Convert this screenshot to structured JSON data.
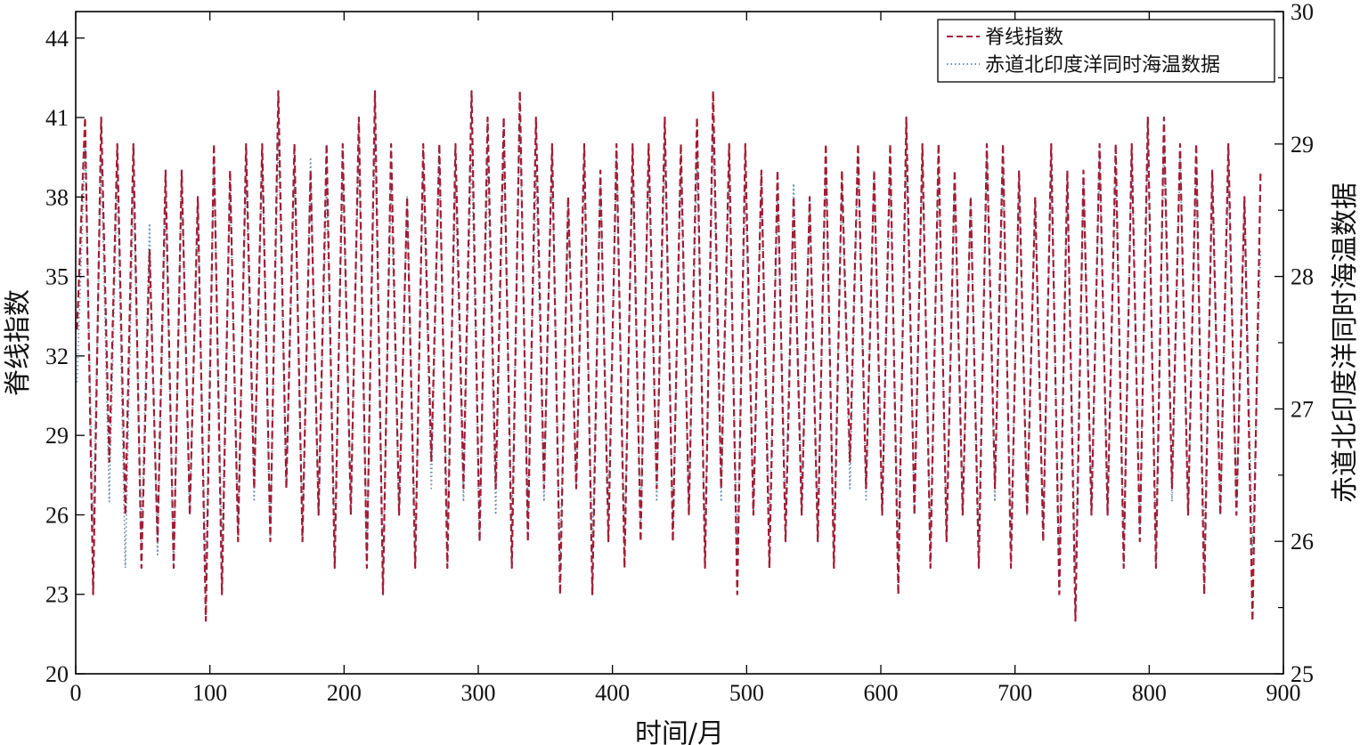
{
  "chart_data": {
    "type": "line",
    "title": "",
    "xlabel": "时间/月",
    "ylabel_left": "脊线指数",
    "ylabel_right": "赤道北印度洋同时海温数据",
    "xlim": [
      0,
      900
    ],
    "ylim_left": [
      20,
      45
    ],
    "ylim_right": [
      25,
      30
    ],
    "x_ticks": [
      "0",
      "100",
      "200",
      "300",
      "400",
      "500",
      "600",
      "700",
      "800",
      "900"
    ],
    "y_ticks_left": [
      "20",
      "23",
      "26",
      "29",
      "32",
      "35",
      "38",
      "41",
      "44"
    ],
    "y_ticks_right": [
      "25",
      "26",
      "27",
      "28",
      "29",
      "30"
    ],
    "grid": false,
    "legend_position": "top-right",
    "series": [
      {
        "name": "脊线指数",
        "axis": "left",
        "style": "dashed",
        "color": "#a01d35",
        "x_start": 1,
        "x_step": 6,
        "values": [
          33,
          41,
          23,
          41,
          28,
          40,
          26,
          40,
          24,
          36,
          25,
          39,
          24,
          39,
          26,
          38,
          22,
          40,
          23,
          39,
          25,
          40,
          27,
          40,
          25,
          42,
          27,
          40,
          25,
          39,
          26,
          40,
          24,
          40,
          26,
          41,
          24,
          42,
          23,
          40,
          26,
          38,
          24,
          40,
          28,
          40,
          24,
          40,
          27,
          42,
          25,
          41,
          27,
          41,
          24,
          42,
          25,
          41,
          27,
          40,
          23,
          38,
          27,
          40,
          23,
          39,
          25,
          40,
          24,
          40,
          25,
          40,
          27,
          41,
          25,
          40,
          26,
          41,
          24,
          42,
          27,
          40,
          23,
          40,
          26,
          39,
          24,
          39,
          25,
          38,
          26,
          38,
          25,
          40,
          24,
          39,
          28,
          40,
          27,
          39,
          26,
          40,
          23,
          41,
          26,
          40,
          24,
          40,
          25,
          39,
          26,
          38,
          24,
          40,
          27,
          40,
          24,
          39,
          26,
          38,
          25,
          40,
          23,
          39,
          22,
          39,
          26,
          40,
          26,
          40,
          24,
          40,
          25,
          41,
          24,
          41,
          27,
          40,
          26,
          40,
          23,
          39,
          26,
          40,
          26,
          38,
          22,
          39
        ]
      },
      {
        "name": "赤道北印度洋同时海温数据",
        "axis": "right",
        "style": "dotted",
        "color": "#6f8fb0",
        "x_start": 1,
        "x_step": 6,
        "values": [
          27.2,
          29.0,
          26.1,
          28.9,
          26.3,
          28.8,
          25.8,
          28.7,
          26.0,
          28.4,
          25.9,
          28.6,
          25.8,
          28.8,
          26.2,
          28.5,
          25.7,
          28.9,
          25.9,
          28.7,
          26.1,
          28.8,
          26.3,
          28.9,
          26.0,
          29.1,
          26.4,
          28.8,
          26.1,
          28.9,
          26.2,
          28.7,
          26.0,
          28.8,
          26.3,
          29.0,
          25.9,
          29.1,
          25.8,
          28.7,
          26.2,
          28.6,
          26.0,
          28.8,
          26.4,
          28.9,
          26.1,
          28.7,
          26.3,
          29.0,
          26.0,
          28.9,
          26.2,
          29.0,
          26.1,
          29.2,
          26.2,
          28.8,
          26.3,
          28.9,
          25.8,
          28.6,
          26.4,
          28.8,
          25.9,
          28.7,
          26.2,
          28.9,
          26.0,
          28.8,
          26.1,
          28.9,
          26.3,
          29.0,
          26.1,
          28.8,
          26.2,
          28.9,
          26.0,
          29.1,
          26.3,
          28.8,
          25.9,
          28.7,
          26.2,
          28.8,
          26.1,
          28.6,
          26.2,
          28.7,
          26.3,
          28.6,
          26.1,
          28.8,
          26.0,
          28.7,
          26.4,
          28.9,
          26.3,
          28.8,
          26.2,
          28.8,
          25.9,
          28.9,
          26.2,
          28.9,
          26.0,
          28.8,
          26.1,
          28.7,
          26.2,
          28.6,
          26.0,
          28.9,
          26.3,
          28.8,
          26.0,
          28.7,
          26.2,
          28.6,
          26.1,
          28.8,
          25.9,
          28.7,
          25.8,
          28.7,
          26.2,
          28.9,
          26.2,
          28.8,
          26.0,
          28.9,
          26.1,
          29.0,
          26.0,
          29.0,
          26.3,
          28.9,
          26.2,
          28.8,
          25.9,
          28.7,
          26.2,
          28.8,
          26.3,
          28.6,
          25.9,
          28.2
        ]
      }
    ]
  }
}
